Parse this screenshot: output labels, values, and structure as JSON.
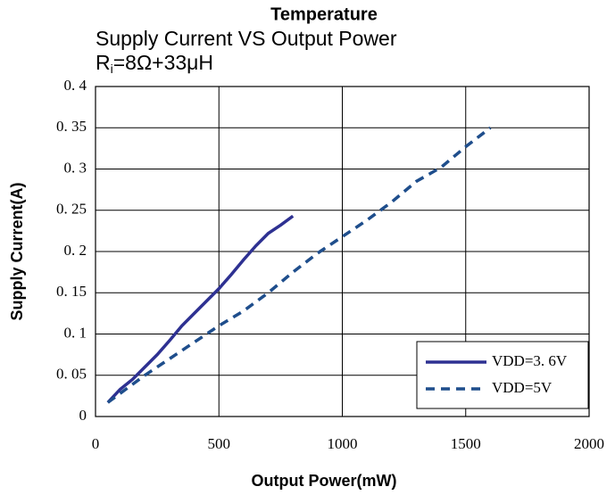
{
  "chart_data": {
    "type": "line",
    "title": "Temperature",
    "subtitle": "Supply Current VS Output Power",
    "condition": {
      "base": "R",
      "sub": "i",
      "rest": "=8Ω+33μH"
    },
    "x_label": "Output Power(mW)",
    "y_label": "Supply Current(A)",
    "xlim": [
      0,
      2000
    ],
    "xticks": [
      0,
      500,
      1000,
      1500,
      2000
    ],
    "ylim": [
      0,
      0.4
    ],
    "yticks": [
      0,
      {
        "value": 0.05,
        "label": "0. 05"
      },
      {
        "value": 0.1,
        "label": "0. 1"
      },
      {
        "value": 0.15,
        "label": "0. 15"
      },
      {
        "value": 0.2,
        "label": "0. 2"
      },
      {
        "value": 0.25,
        "label": "0. 25"
      },
      {
        "value": 0.3,
        "label": "0. 3"
      },
      {
        "value": 0.35,
        "label": "0. 35"
      },
      {
        "value": 0.4,
        "label": "0. 4"
      }
    ],
    "grid": true,
    "legend": "lower right",
    "series": [
      {
        "name": "VDD=3. 6V",
        "color": "#2e3192",
        "dash": false,
        "x": [
          50,
          100,
          150,
          200,
          250,
          300,
          350,
          400,
          450,
          500,
          550,
          600,
          650,
          700,
          750,
          800
        ],
        "values": [
          0.017,
          0.033,
          0.045,
          0.06,
          0.075,
          0.092,
          0.11,
          0.125,
          0.14,
          0.155,
          0.172,
          0.19,
          0.207,
          0.222,
          0.232,
          0.243
        ]
      },
      {
        "name": "VDD=5V",
        "color": "#1f4e8c",
        "dash": true,
        "x": [
          50,
          200,
          300,
          400,
          500,
          600,
          700,
          800,
          900,
          1000,
          1100,
          1200,
          1300,
          1400,
          1500,
          1600
        ],
        "values": [
          0.017,
          0.05,
          0.07,
          0.09,
          0.11,
          0.128,
          0.15,
          0.175,
          0.198,
          0.218,
          0.238,
          0.26,
          0.285,
          0.302,
          0.327,
          0.35
        ]
      }
    ]
  }
}
